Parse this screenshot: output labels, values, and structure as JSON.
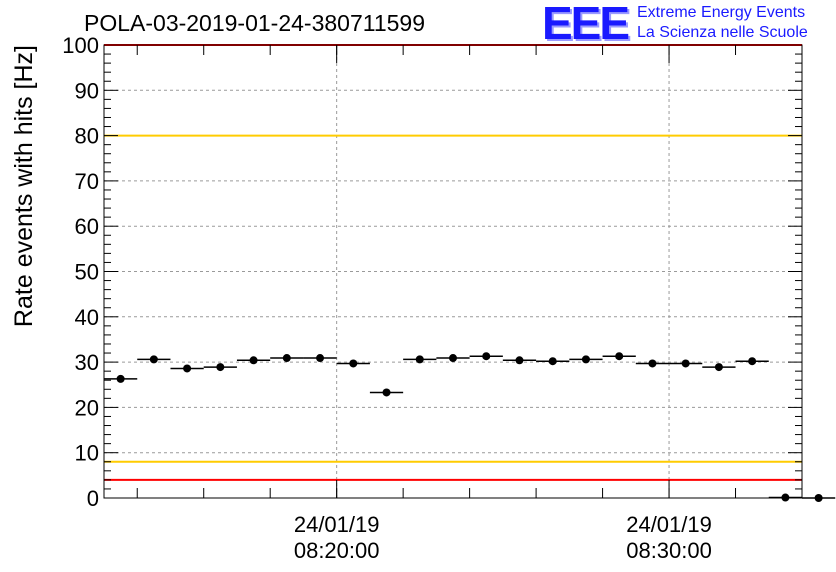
{
  "header": {
    "title": "POLA-03-2019-01-24-380711599",
    "logo": {
      "mark": "EEE",
      "line1": "Extreme Energy Events",
      "line2": "La Scienza nelle Scuole"
    }
  },
  "chart_data": {
    "type": "scatter",
    "title": "POLA-03-2019-01-24-380711599",
    "ylabel": "Rate events with hits [Hz]",
    "xlabel": "",
    "ylim": [
      0,
      100
    ],
    "yticks": [
      0,
      10,
      20,
      30,
      40,
      50,
      60,
      70,
      80,
      90,
      100
    ],
    "xticks": [
      {
        "date": "24/01/19",
        "time": "08:20:00"
      },
      {
        "date": "24/01/19",
        "time": "08:30:00"
      }
    ],
    "grid": true,
    "reference_lines": [
      {
        "value": 100,
        "color": "#ff0000"
      },
      {
        "value": 80,
        "color": "#ffcc00"
      },
      {
        "value": 8,
        "color": "#ffcc00"
      },
      {
        "value": 4,
        "color": "#ff0000"
      }
    ],
    "marker_color": "#000000",
    "series": [
      {
        "x": [
          "08:13:30",
          "08:14:30",
          "08:15:30",
          "08:16:30",
          "08:17:30",
          "08:18:30",
          "08:19:30",
          "08:20:30",
          "08:21:30",
          "08:22:30",
          "08:23:30",
          "08:24:30",
          "08:25:30",
          "08:26:30",
          "08:27:30",
          "08:28:30",
          "08:29:30",
          "08:30:30",
          "08:31:30",
          "08:32:30",
          "08:33:30",
          "08:34:30"
        ],
        "values": [
          26.3,
          30.6,
          28.6,
          28.9,
          30.4,
          30.9,
          30.9,
          29.7,
          23.3,
          30.6,
          30.9,
          31.3,
          30.4,
          30.2,
          30.6,
          31.3,
          29.7,
          29.7,
          28.9,
          30.2,
          0.1,
          0
        ]
      }
    ]
  }
}
